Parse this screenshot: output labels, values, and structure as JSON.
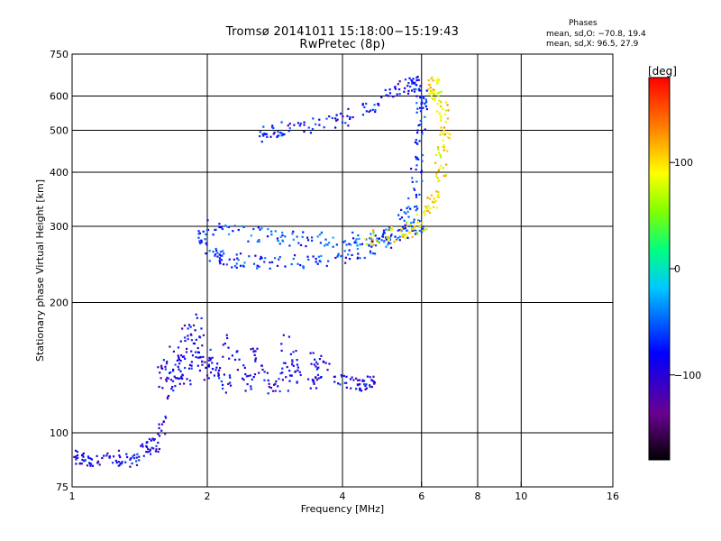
{
  "header": {
    "title_line1": "Tromsø 20141011  15:18:00−15:19:43",
    "title_line2": "RwPretec (8p)",
    "phases_title": "Phases",
    "phases_o": "mean, sd,O: −70.8, 19.4",
    "phases_x": "mean, sd,X:  96.5, 27.9"
  },
  "chart_data": {
    "type": "scatter",
    "xlabel": "Frequency [MHz]",
    "ylabel": "Stationary phase Virtual Height [km]",
    "xscale": "log",
    "yscale": "log",
    "xlim": [
      1,
      16
    ],
    "ylim": [
      75,
      750
    ],
    "x_ticks": [
      1,
      2,
      4,
      6,
      8,
      10,
      16
    ],
    "x_gridlines": [
      2,
      4,
      6,
      8,
      10
    ],
    "y_ticks": [
      75,
      100,
      200,
      300,
      400,
      500,
      600,
      750
    ],
    "y_gridlines": [
      100,
      200,
      300,
      400,
      500,
      600
    ],
    "grid": true,
    "colorbar": {
      "label": "[deg]",
      "range": [
        -180,
        180
      ],
      "ticks": [
        100,
        0,
        -100
      ],
      "colormap": "rainbow: black-purple-blue-cyan-green-yellow-orange-red"
    },
    "series": [
      {
        "trace": "O-mode lower band (E/F1 layer, blue)",
        "phase_deg": -90,
        "points": [
          [
            1.0,
            88
          ],
          [
            1.05,
            87
          ],
          [
            1.1,
            86
          ],
          [
            1.2,
            88
          ],
          [
            1.3,
            87
          ],
          [
            1.4,
            86
          ],
          [
            1.5,
            95
          ],
          [
            1.55,
            92
          ],
          [
            1.6,
            120
          ],
          [
            1.6,
            145
          ],
          [
            1.7,
            125
          ],
          [
            1.7,
            155
          ],
          [
            1.8,
            130
          ],
          [
            1.8,
            175
          ],
          [
            1.9,
            140
          ],
          [
            1.9,
            190
          ],
          [
            2.0,
            132
          ],
          [
            2.0,
            150
          ],
          [
            2.2,
            128
          ],
          [
            2.2,
            170
          ],
          [
            2.5,
            128
          ],
          [
            2.5,
            155
          ],
          [
            2.8,
            128
          ],
          [
            3.0,
            130
          ],
          [
            3.0,
            165
          ],
          [
            3.2,
            135
          ],
          [
            3.5,
            130
          ],
          [
            3.5,
            150
          ],
          [
            4.0,
            132
          ],
          [
            4.3,
            130
          ],
          [
            4.6,
            130
          ]
        ]
      },
      {
        "trace": "O-mode lower F2 trace",
        "phase_deg": -70,
        "points": [
          [
            1.95,
            290
          ],
          [
            2.0,
            270
          ],
          [
            2.1,
            255
          ],
          [
            2.3,
            250
          ],
          [
            2.6,
            247
          ],
          [
            3.0,
            247
          ],
          [
            3.5,
            250
          ],
          [
            4.0,
            256
          ],
          [
            4.5,
            265
          ],
          [
            5.0,
            275
          ],
          [
            5.3,
            290
          ],
          [
            5.6,
            320
          ],
          [
            5.8,
            360
          ],
          [
            5.9,
            420
          ],
          [
            6.0,
            500
          ],
          [
            6.0,
            600
          ]
        ]
      },
      {
        "trace": "O-mode upper F2 trace",
        "phase_deg": -60,
        "points": [
          [
            2.0,
            300
          ],
          [
            2.3,
            292
          ],
          [
            2.7,
            285
          ],
          [
            3.0,
            282
          ],
          [
            3.5,
            280
          ],
          [
            4.0,
            279
          ],
          [
            4.5,
            280
          ],
          [
            5.0,
            283
          ],
          [
            5.5,
            290
          ],
          [
            5.9,
            300
          ]
        ]
      },
      {
        "trace": "high-altitude echo",
        "phase_deg": -80,
        "points": [
          [
            2.6,
            480
          ],
          [
            2.8,
            500
          ],
          [
            3.0,
            505
          ],
          [
            3.5,
            515
          ],
          [
            4.0,
            530
          ],
          [
            4.5,
            560
          ],
          [
            5.0,
            600
          ],
          [
            5.5,
            630
          ],
          [
            5.8,
            640
          ]
        ]
      },
      {
        "trace": "X-mode trace",
        "phase_deg": 96,
        "points": [
          [
            4.5,
            280
          ],
          [
            5.0,
            285
          ],
          [
            5.5,
            290
          ],
          [
            5.9,
            300
          ],
          [
            6.2,
            320
          ],
          [
            6.4,
            350
          ],
          [
            6.6,
            400
          ],
          [
            6.7,
            450
          ],
          [
            6.8,
            500
          ],
          [
            6.7,
            550
          ],
          [
            6.5,
            600
          ],
          [
            6.4,
            640
          ]
        ]
      }
    ]
  }
}
